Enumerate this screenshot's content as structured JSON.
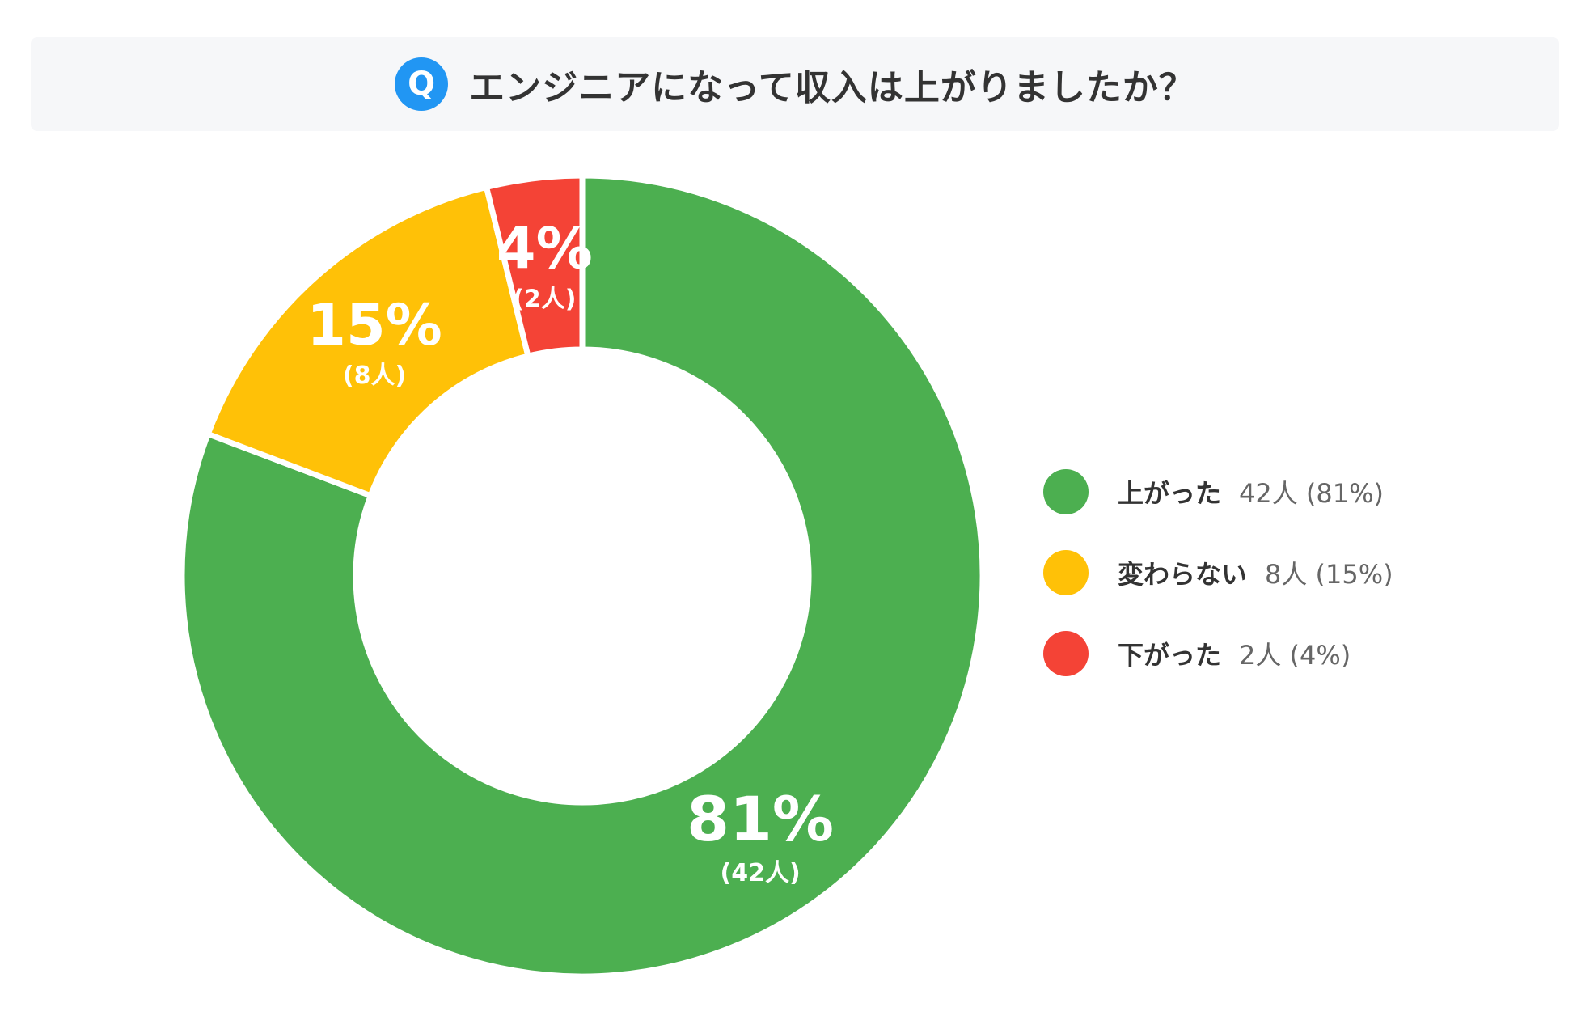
{
  "question": {
    "badge": "Q",
    "text": "エンジニアになって収入は上がりましたか？",
    "badge_color": "#2196f3"
  },
  "chart_data": {
    "type": "pie",
    "donut": true,
    "categories": [
      "上がった",
      "変わらない",
      "下がった"
    ],
    "values": [
      42,
      8,
      2
    ],
    "percent_labels": [
      "81%",
      "15%",
      "4%"
    ],
    "count_labels": [
      "(42人)",
      "(8人)",
      "(2人)"
    ],
    "legend_values": [
      "42人 (81%)",
      "8人 (15%)",
      "2人 (4%)"
    ],
    "colors": [
      "#4caf50",
      "#ffc107",
      "#f44336"
    ],
    "start": "12 o'clock",
    "direction": "clockwise",
    "legend_placement": "right"
  }
}
